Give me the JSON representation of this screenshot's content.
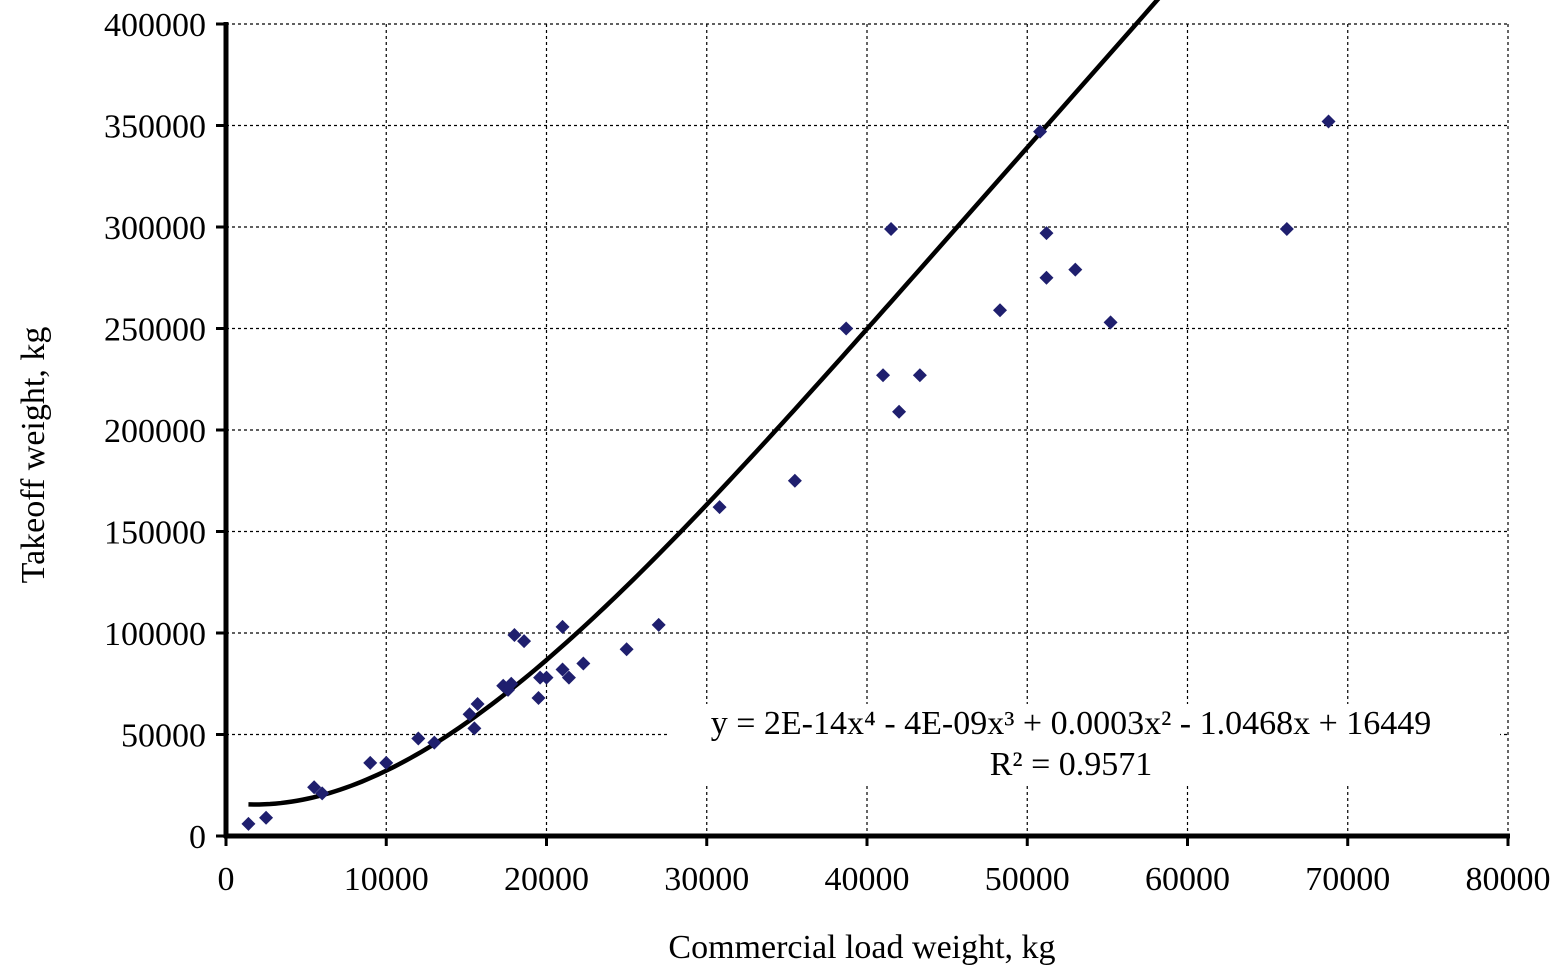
{
  "chart_data": {
    "type": "scatter",
    "title": "",
    "xlabel": "Commercial load weight, kg",
    "ylabel": "Takeoff weight, kg",
    "xlim": [
      0,
      80000
    ],
    "ylim": [
      0,
      400000
    ],
    "x_ticks": [
      "0",
      "10000",
      "20000",
      "30000",
      "40000",
      "50000",
      "60000",
      "70000",
      "80000"
    ],
    "y_ticks": [
      "0",
      "50000",
      "100000",
      "150000",
      "200000",
      "250000",
      "300000",
      "350000",
      "400000"
    ],
    "grid": true,
    "legend": "none",
    "marker_color": "#1f1f6e",
    "series": [
      {
        "points": [
          {
            "x": 1400,
            "y": 6000
          },
          {
            "x": 2500,
            "y": 9000
          },
          {
            "x": 5500,
            "y": 24000
          },
          {
            "x": 6000,
            "y": 21000
          },
          {
            "x": 9000,
            "y": 36000
          },
          {
            "x": 10000,
            "y": 36000
          },
          {
            "x": 12000,
            "y": 48000
          },
          {
            "x": 13000,
            "y": 46000
          },
          {
            "x": 15200,
            "y": 60000
          },
          {
            "x": 15500,
            "y": 53000
          },
          {
            "x": 15700,
            "y": 65000
          },
          {
            "x": 17300,
            "y": 74000
          },
          {
            "x": 17600,
            "y": 72000
          },
          {
            "x": 17800,
            "y": 75000
          },
          {
            "x": 18000,
            "y": 99000
          },
          {
            "x": 18600,
            "y": 96000
          },
          {
            "x": 19500,
            "y": 68000
          },
          {
            "x": 19600,
            "y": 78000
          },
          {
            "x": 20000,
            "y": 78000
          },
          {
            "x": 21000,
            "y": 103000
          },
          {
            "x": 21000,
            "y": 82000
          },
          {
            "x": 21400,
            "y": 78000
          },
          {
            "x": 22300,
            "y": 85000
          },
          {
            "x": 25000,
            "y": 92000
          },
          {
            "x": 27000,
            "y": 104000
          },
          {
            "x": 30800,
            "y": 162000
          },
          {
            "x": 35500,
            "y": 175000
          },
          {
            "x": 38700,
            "y": 250000
          },
          {
            "x": 41000,
            "y": 227000
          },
          {
            "x": 41500,
            "y": 299000
          },
          {
            "x": 42000,
            "y": 209000
          },
          {
            "x": 43300,
            "y": 227000
          },
          {
            "x": 48300,
            "y": 259000
          },
          {
            "x": 50800,
            "y": 347000
          },
          {
            "x": 51200,
            "y": 297000
          },
          {
            "x": 51200,
            "y": 275000
          },
          {
            "x": 53000,
            "y": 279000
          },
          {
            "x": 55200,
            "y": 253000
          },
          {
            "x": 66200,
            "y": 299000
          },
          {
            "x": 68800,
            "y": 352000
          }
        ]
      }
    ],
    "trendline": {
      "type": "polynomial",
      "degree": 4,
      "x_range": [
        1400,
        68800
      ],
      "equation": "y = 2E-14x⁴ - 4E-09x³ + 0.0003x² - 1.0468x + 16449",
      "r_squared": "R² = 0.9571"
    }
  }
}
